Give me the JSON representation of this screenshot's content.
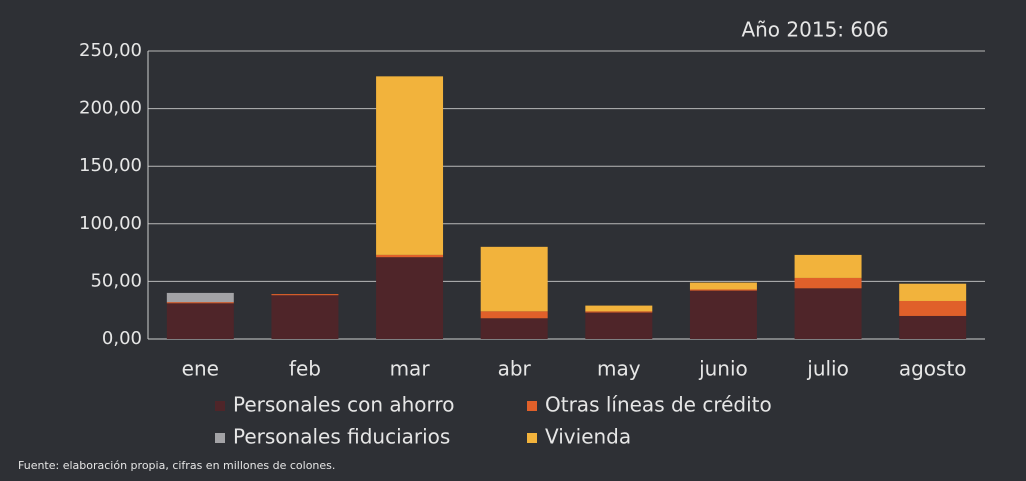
{
  "chart_data": {
    "type": "stacked_bar",
    "title": "Año 2015: 606",
    "footnote": "Fuente: elaboración propia, cifras en millones de colones.",
    "categories": [
      "ene",
      "feb",
      "mar",
      "abr",
      "may",
      "junio",
      "julio",
      "agosto"
    ],
    "series": [
      {
        "name": "Personales con ahorro",
        "color": "#4f2529",
        "values": [
          31,
          38,
          71,
          18,
          23,
          42,
          44,
          20
        ]
      },
      {
        "name": "Otras líneas de crédito",
        "color": "#e0602a",
        "values": [
          1,
          1,
          2,
          6,
          1,
          1,
          9,
          13
        ]
      },
      {
        "name": "Personales fiduciarios",
        "color": "#a3a3a6",
        "values": [
          8,
          0,
          0,
          0,
          0,
          0,
          0,
          0
        ]
      },
      {
        "name": "Vivienda",
        "color": "#f2b33c",
        "values": [
          0,
          0,
          155,
          56,
          5,
          6,
          20,
          15
        ]
      }
    ],
    "ylim": [
      0,
      250
    ],
    "yticks": [
      {
        "value": 0,
        "label": "0,00"
      },
      {
        "value": 50,
        "label": "50,00"
      },
      {
        "value": 100,
        "label": "100,00"
      },
      {
        "value": 150,
        "label": "150,00"
      },
      {
        "value": 200,
        "label": "200,00"
      },
      {
        "value": 250,
        "label": "250,00"
      }
    ],
    "grid": true
  }
}
